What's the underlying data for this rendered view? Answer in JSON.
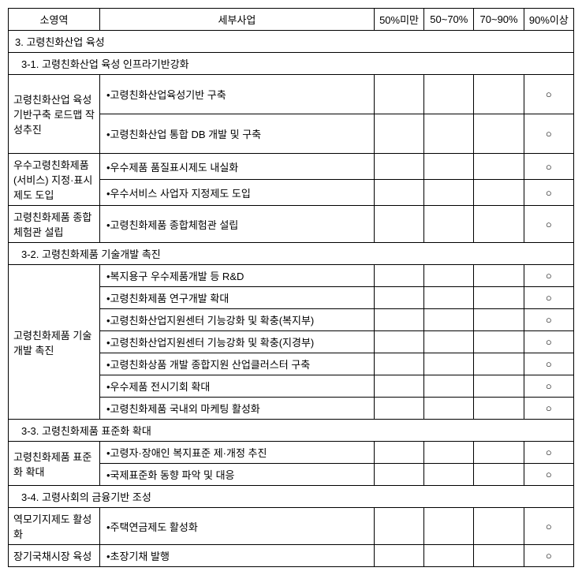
{
  "headers": {
    "subarea": "소영역",
    "detail": "세부사업",
    "pct1": "50%미만",
    "pct2": "50~70%",
    "pct3": "70~90%",
    "pct4": "90%이상"
  },
  "mark": "○",
  "section": {
    "title": "3. 고령친화산업 육성"
  },
  "subsections": {
    "s1": {
      "title": "3-1. 고령친화산업 육성 인프라기반강화",
      "groups": {
        "g1": {
          "label": "고령친화산업 육성기반구축 로드맵 작성추진",
          "items": {
            "i1": "•고령친화산업육성기반 구축",
            "i2": "•고령친화산업 통합 DB 개발 및 구축"
          }
        },
        "g2": {
          "label": "우수고령친화제품(서비스) 지정·표시제도 도입",
          "items": {
            "i1": "•우수제품 품질표시제도 내실화",
            "i2": "•우수서비스 사업자 지정제도 도입"
          }
        },
        "g3": {
          "label": "고령친화제품 종합체험관 설립",
          "items": {
            "i1": "•고령친화제품 종합체험관 설립"
          }
        }
      }
    },
    "s2": {
      "title": "3-2. 고령친화제품 기술개발 촉진",
      "groups": {
        "g1": {
          "label": "고령친화제품 기술개발 촉진",
          "items": {
            "i1": "•복지용구 우수제품개발 등 R&D",
            "i2": "•고령친화제품 연구개발 확대",
            "i3": "•고령친화산업지원센터 기능강화 및 확충(복지부)",
            "i4": "•고령친화산업지원센터 기능강화 및 확충(지경부)",
            "i5": "•고령친화상품 개발 종합지원 산업클러스터 구축",
            "i6": "•우수제품 전시기회 확대",
            "i7": "•고령친화제품 국내외 마케팅 활성화"
          }
        }
      }
    },
    "s3": {
      "title": "3-3. 고령친화제품 표준화 확대",
      "groups": {
        "g1": {
          "label": "고령친화제품 표준화 확대",
          "items": {
            "i1": "•고령자·장애인 복지표준 제·개정 추진",
            "i2": "•국제표준화 동향 파악 및 대응"
          }
        }
      }
    },
    "s4": {
      "title": "3-4. 고령사회의 금융기반 조성",
      "groups": {
        "g1": {
          "label": "역모기지제도 활성화",
          "items": {
            "i1": "•주택연금제도 활성화"
          }
        },
        "g2": {
          "label": "장기국채시장 육성",
          "items": {
            "i1": "•초장기채 발행"
          }
        }
      }
    }
  }
}
